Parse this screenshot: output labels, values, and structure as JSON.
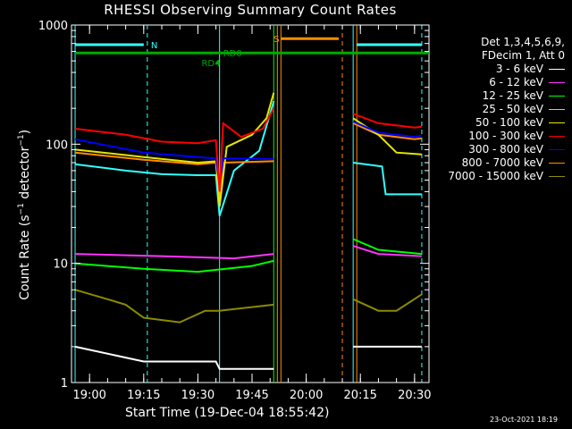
{
  "chart_data": {
    "type": "line",
    "title": "RHESSI Observing Summary Count Rates",
    "xlabel": "Start Time (19-Dec-04 18:55:42)",
    "ylabel_parts": [
      "Count Rate (s",
      "−1",
      " detector",
      "−1",
      ")"
    ],
    "yscale": "log",
    "ylim": [
      1,
      1000
    ],
    "y_ticks": [
      {
        "value": 1,
        "label": "1"
      },
      {
        "value": 10,
        "label": "10"
      },
      {
        "value": 100,
        "label": "100"
      },
      {
        "value": 1000,
        "label": "1000"
      }
    ],
    "xlim": [
      "18:55:42",
      "20:34:00"
    ],
    "x_ticks": [
      {
        "value": "19:00",
        "label": "19:00"
      },
      {
        "value": "19:15",
        "label": "19:15"
      },
      {
        "value": "19:30",
        "label": "19:30"
      },
      {
        "value": "19:45",
        "label": "19:45"
      },
      {
        "value": "20:00",
        "label": "20:00"
      },
      {
        "value": "20:15",
        "label": "20:15"
      },
      {
        "value": "20:30",
        "label": "20:30"
      }
    ],
    "legend": {
      "header": [
        "Det 1,3,4,5,6,9,",
        "FDecim 1, Att 0"
      ],
      "position": "right",
      "entries": [
        {
          "name": "3 - 6 keV",
          "color": "#ffffff"
        },
        {
          "name": "6 - 12 keV",
          "color": "#ff33ff"
        },
        {
          "name": "12 - 25 keV",
          "color": "#00ff00"
        },
        {
          "name": "25 - 50 keV",
          "color": "#33ffff"
        },
        {
          "name": "50 - 100 keV",
          "color": "#e6e600"
        },
        {
          "name": "100 - 300 keV",
          "color": "#ff0000"
        },
        {
          "name": "300 - 800 keV",
          "color": "#0000ff"
        },
        {
          "name": "800 - 7000 keV",
          "color": "#ff8c00"
        },
        {
          "name": "7000 - 15000 keV",
          "color": "#8b8b00"
        }
      ]
    },
    "series": [
      {
        "name": "100 - 300 keV",
        "color": "#ff0000",
        "segments": [
          [
            [
              "18:56",
              135
            ],
            [
              "19:10",
              120
            ],
            [
              "19:20",
              105
            ],
            [
              "19:30",
              102
            ],
            [
              "19:35",
              108
            ],
            [
              "19:36",
              40
            ],
            [
              "19:37",
              150
            ],
            [
              "19:42",
              115
            ],
            [
              "19:48",
              135
            ],
            [
              "19:51",
              200
            ]
          ],
          [
            [
              "20:13",
              180
            ],
            [
              "20:20",
              150
            ],
            [
              "20:30",
              138
            ],
            [
              "20:32",
              140
            ]
          ]
        ]
      },
      {
        "name": "300 - 800 keV",
        "color": "#0000ff",
        "segments": [
          [
            [
              "18:56",
              110
            ],
            [
              "19:15",
              85
            ],
            [
              "19:30",
              78
            ],
            [
              "19:35",
              76
            ],
            [
              "19:36",
              45
            ],
            [
              "19:37",
              76
            ],
            [
              "19:51",
              75
            ]
          ],
          [
            [
              "20:13",
              155
            ],
            [
              "20:20",
              125
            ],
            [
              "20:30",
              115
            ],
            [
              "20:32",
              118
            ]
          ]
        ]
      },
      {
        "name": "50 - 100 keV",
        "color": "#e6e600",
        "segments": [
          [
            [
              "18:56",
              90
            ],
            [
              "19:15",
              78
            ],
            [
              "19:30",
              70
            ],
            [
              "19:35",
              72
            ],
            [
              "19:36",
              30
            ],
            [
              "19:38",
              95
            ],
            [
              "19:45",
              120
            ],
            [
              "19:49",
              165
            ],
            [
              "19:51",
              270
            ]
          ],
          [
            [
              "20:13",
              165
            ],
            [
              "20:20",
              120
            ],
            [
              "20:25",
              85
            ],
            [
              "20:32",
              82
            ]
          ]
        ]
      },
      {
        "name": "800 - 7000 keV",
        "color": "#ff8c00",
        "segments": [
          [
            [
              "18:56",
              85
            ],
            [
              "19:15",
              74
            ],
            [
              "19:30",
              68
            ],
            [
              "19:35",
              70
            ],
            [
              "19:36",
              35
            ],
            [
              "19:37",
              70
            ],
            [
              "19:51",
              72
            ]
          ],
          [
            [
              "20:13",
              150
            ],
            [
              "20:20",
              120
            ],
            [
              "20:30",
              110
            ],
            [
              "20:32",
              112
            ]
          ]
        ]
      },
      {
        "name": "25 - 50 keV",
        "color": "#33ffff",
        "segments": [
          [
            [
              "18:56",
              68
            ],
            [
              "19:10",
              60
            ],
            [
              "19:20",
              56
            ],
            [
              "19:30",
              55
            ],
            [
              "19:35",
              55
            ],
            [
              "19:36",
              25
            ],
            [
              "19:40",
              60
            ],
            [
              "19:47",
              88
            ],
            [
              "19:51",
              230
            ]
          ],
          [
            [
              "20:13",
              70
            ],
            [
              "20:21",
              65
            ],
            [
              "20:22",
              38
            ],
            [
              "20:32",
              38
            ]
          ]
        ]
      },
      {
        "name": "6 - 12 keV",
        "color": "#ff33ff",
        "segments": [
          [
            [
              "18:56",
              12
            ],
            [
              "19:20",
              11.5
            ],
            [
              "19:40",
              11
            ],
            [
              "19:51",
              12
            ]
          ],
          [
            [
              "20:13",
              14
            ],
            [
              "20:20",
              12
            ],
            [
              "20:32",
              11.5
            ]
          ]
        ]
      },
      {
        "name": "12 - 25 keV",
        "color": "#00ff00",
        "segments": [
          [
            [
              "18:56",
              10
            ],
            [
              "19:15",
              9
            ],
            [
              "19:30",
              8.5
            ],
            [
              "19:45",
              9.5
            ],
            [
              "19:51",
              10.5
            ]
          ],
          [
            [
              "20:13",
              16
            ],
            [
              "20:20",
              13
            ],
            [
              "20:32",
              12
            ]
          ]
        ]
      },
      {
        "name": "7000 - 15000 keV",
        "color": "#8b8b00",
        "segments": [
          [
            [
              "18:56",
              6
            ],
            [
              "19:05",
              5
            ],
            [
              "19:10",
              4.5
            ],
            [
              "19:15",
              3.5
            ],
            [
              "19:25",
              3.2
            ],
            [
              "19:32",
              4
            ],
            [
              "19:36",
              4
            ],
            [
              "19:51",
              4.5
            ]
          ],
          [
            [
              "20:13",
              5
            ],
            [
              "20:20",
              4
            ],
            [
              "20:25",
              4
            ],
            [
              "20:32",
              5.5
            ]
          ]
        ]
      },
      {
        "name": "3 - 6 keV",
        "color": "#ffffff",
        "segments": [
          [
            [
              "18:56",
              2
            ],
            [
              "19:15",
              1.5
            ],
            [
              "19:35",
              1.5
            ],
            [
              "19:36",
              1.3
            ],
            [
              "19:51",
              1.3
            ]
          ],
          [
            [
              "20:13",
              2
            ],
            [
              "20:32",
              2
            ]
          ]
        ]
      }
    ],
    "markers": [
      {
        "name": "N",
        "color": "#33ffff",
        "y_frac": 0.055,
        "segments": [
          [
            "18:56",
            "19:15"
          ],
          [
            "20:14",
            "20:32"
          ]
        ],
        "label_at": "19:17"
      },
      {
        "name": "S",
        "color": "#ff8c00",
        "y_frac": 0.038,
        "segments": [
          [
            "19:53",
            "20:09"
          ]
        ],
        "label_at": "19:51"
      },
      {
        "name": "RD0",
        "color": "#00aa00",
        "y_frac": 0.078,
        "segments": [
          [
            "18:56",
            "20:34"
          ]
        ],
        "label_at": "19:37"
      },
      {
        "name": "RD4",
        "color": "#00aa00",
        "y_frac": 0.105,
        "segments": [
          [
            "19:35",
            "19:36"
          ]
        ],
        "label_at": "19:31"
      }
    ],
    "vlines": [
      {
        "t": "18:56",
        "color": "#33ffff",
        "style": "solid"
      },
      {
        "t": "19:16",
        "color": "#33ffff",
        "style": "dash"
      },
      {
        "t": "19:36",
        "color": "#33ffff",
        "style": "solid"
      },
      {
        "t": "19:51",
        "color": "#00ff00",
        "style": "solid"
      },
      {
        "t": "19:52",
        "color": "#ff8c00",
        "style": "solid"
      },
      {
        "t": "19:53",
        "color": "#ff8c00",
        "style": "solid"
      },
      {
        "t": "20:10",
        "color": "#ff8c00",
        "style": "dash"
      },
      {
        "t": "20:13",
        "color": "#33ffff",
        "style": "solid"
      },
      {
        "t": "20:14",
        "color": "#ff8c00",
        "style": "solid"
      },
      {
        "t": "20:32",
        "color": "#33ffff",
        "style": "dash"
      }
    ]
  },
  "timestamp": "23-Oct-2021 18:19"
}
